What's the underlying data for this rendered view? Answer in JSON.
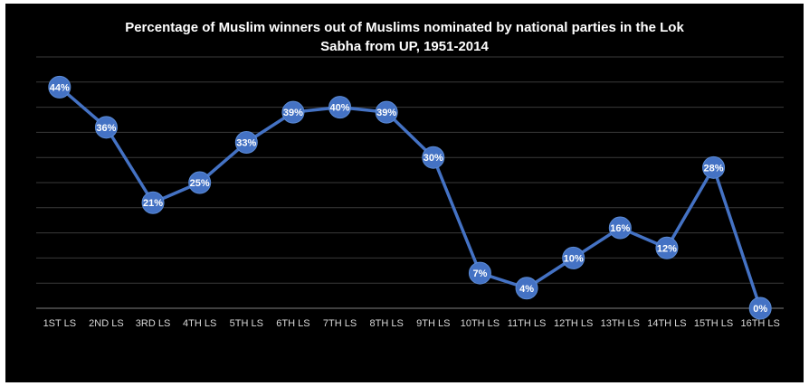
{
  "title_line1": "Percentage of Muslim winners out of Muslims nominated by national parties in the Lok",
  "title_line2": "Sabha from UP, 1951-2014",
  "colors": {
    "background": "#000000",
    "series": "#4472c4",
    "gridline": "#3a3a3a",
    "label_text": "#ffffff",
    "tick_text": "#d9d9d9"
  },
  "chart_data": {
    "type": "line",
    "title": "Percentage of Muslim winners out of Muslims nominated by national parties in the Lok Sabha from UP, 1951-2014",
    "xlabel": "",
    "ylabel": "",
    "categories": [
      "1ST LS",
      "2ND LS",
      "3RD LS",
      "4TH LS",
      "5TH LS",
      "6TH LS",
      "7TH LS",
      "8TH LS",
      "9TH LS",
      "10TH LS",
      "11TH LS",
      "12TH LS",
      "13TH LS",
      "14TH LS",
      "15TH LS",
      "16TH LS"
    ],
    "values": [
      44,
      36,
      21,
      25,
      33,
      39,
      40,
      39,
      30,
      7,
      4,
      10,
      16,
      12,
      28,
      0
    ],
    "data_labels": [
      "44%",
      "36%",
      "21%",
      "25%",
      "33%",
      "39%",
      "40%",
      "39%",
      "30%",
      "7%",
      "4%",
      "10%",
      "16%",
      "12%",
      "28%",
      "0%"
    ],
    "ylim": [
      0,
      50
    ],
    "y_gridline_step": 5,
    "grid": true,
    "y_tick_labels_visible": false,
    "legend": "none"
  }
}
